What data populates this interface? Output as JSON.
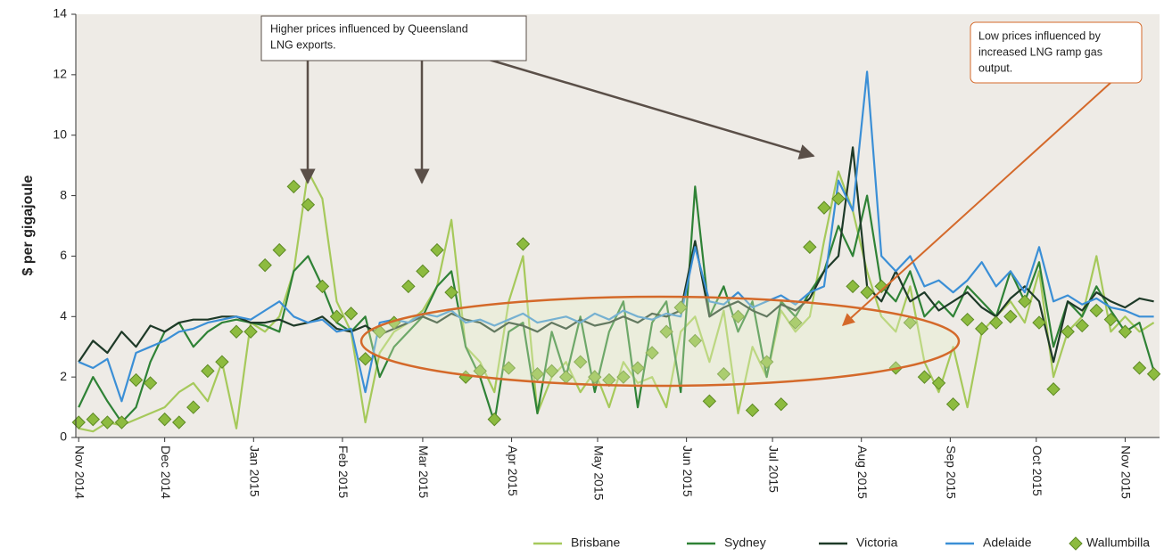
{
  "chart_data": {
    "type": "line",
    "ylabel": "$ per gigajoule",
    "xlim": [
      -1,
      377
    ],
    "ylim": [
      0,
      14
    ],
    "yticks": [
      0,
      2,
      4,
      6,
      8,
      10,
      12,
      14
    ],
    "xticks": [
      {
        "value": 0,
        "label": "Nov 2014"
      },
      {
        "value": 30,
        "label": "Dec 2014"
      },
      {
        "value": 61,
        "label": "Jan 2015"
      },
      {
        "value": 92,
        "label": "Feb 2015"
      },
      {
        "value": 120,
        "label": "Mar 2015"
      },
      {
        "value": 151,
        "label": "Apr 2015"
      },
      {
        "value": 181,
        "label": "May 2015"
      },
      {
        "value": 212,
        "label": "Jun 2015"
      },
      {
        "value": 242,
        "label": "Jul 2015"
      },
      {
        "value": 273,
        "label": "Aug 2015"
      },
      {
        "value": 304,
        "label": "Sep 2015"
      },
      {
        "value": 334,
        "label": "Oct 2015"
      },
      {
        "value": 365,
        "label": "Nov 2015"
      }
    ],
    "x": [
      0,
      5,
      10,
      15,
      20,
      25,
      30,
      35,
      40,
      45,
      50,
      55,
      60,
      65,
      70,
      75,
      80,
      85,
      90,
      95,
      100,
      105,
      110,
      115,
      120,
      125,
      130,
      135,
      140,
      145,
      150,
      155,
      160,
      165,
      170,
      175,
      180,
      185,
      190,
      195,
      200,
      205,
      210,
      215,
      220,
      225,
      230,
      235,
      240,
      245,
      250,
      255,
      260,
      265,
      270,
      275,
      280,
      285,
      290,
      295,
      300,
      305,
      310,
      315,
      320,
      325,
      330,
      335,
      340,
      345,
      350,
      355,
      360,
      365,
      370,
      375
    ],
    "annotations": [
      {
        "lines": [
          "Higher prices influenced by Queensland",
          "LNG exports."
        ]
      },
      {
        "lines": [
          "Low prices influenced by",
          "increased LNG ramp gas",
          "output."
        ]
      }
    ],
    "series": [
      {
        "name": "Brisbane",
        "color": "#a6c95b",
        "values": [
          0.3,
          0.2,
          0.5,
          0.4,
          0.6,
          0.8,
          1.0,
          1.5,
          1.8,
          1.2,
          2.5,
          0.3,
          3.8,
          3.5,
          4.0,
          5.5,
          8.8,
          7.9,
          4.5,
          3.5,
          0.5,
          2.8,
          3.5,
          3.8,
          4.2,
          5.0,
          7.2,
          3.0,
          2.5,
          1.5,
          4.5,
          6.0,
          0.8,
          2.0,
          2.5,
          1.5,
          2.2,
          1.0,
          2.5,
          1.8,
          2.0,
          1.0,
          3.5,
          4.0,
          2.5,
          4.2,
          0.8,
          3.0,
          2.0,
          4.2,
          3.5,
          4.0,
          6.5,
          8.8,
          7.5,
          5.5,
          4.0,
          3.5,
          5.0,
          2.5,
          1.5,
          3.0,
          1.0,
          3.5,
          4.0,
          4.5,
          3.8,
          5.5,
          2.0,
          3.5,
          4.0,
          6.0,
          3.5,
          4.0,
          3.5,
          3.8
        ]
      },
      {
        "name": "Sydney",
        "color": "#2f8236",
        "values": [
          1.0,
          2.0,
          1.2,
          0.5,
          1.0,
          2.5,
          3.5,
          3.8,
          3.0,
          3.5,
          3.8,
          3.9,
          3.8,
          3.7,
          3.5,
          5.5,
          6.0,
          5.0,
          3.8,
          3.5,
          4.0,
          2.0,
          3.0,
          3.5,
          4.0,
          5.0,
          5.5,
          3.0,
          2.0,
          0.5,
          3.5,
          3.8,
          0.8,
          3.5,
          2.0,
          4.0,
          1.5,
          3.5,
          4.5,
          1.0,
          3.8,
          4.5,
          1.5,
          8.3,
          4.0,
          5.0,
          3.5,
          4.5,
          2.0,
          4.5,
          4.0,
          4.8,
          5.5,
          7.0,
          6.0,
          8.0,
          5.0,
          4.5,
          5.5,
          4.0,
          4.5,
          4.0,
          5.0,
          4.5,
          4.0,
          5.5,
          4.5,
          5.8,
          3.0,
          4.5,
          4.0,
          5.0,
          4.2,
          3.5,
          3.8,
          2.2
        ]
      },
      {
        "name": "Victoria",
        "color": "#1e3a28",
        "values": [
          2.5,
          3.2,
          2.8,
          3.5,
          3.0,
          3.7,
          3.5,
          3.8,
          3.9,
          3.9,
          4.0,
          4.0,
          3.8,
          3.8,
          3.9,
          3.7,
          3.8,
          4.0,
          3.6,
          3.5,
          3.7,
          3.4,
          3.6,
          3.8,
          4.0,
          3.8,
          4.1,
          3.9,
          3.8,
          3.5,
          3.8,
          3.7,
          3.5,
          3.8,
          3.6,
          3.9,
          3.7,
          3.8,
          4.0,
          3.8,
          4.1,
          4.0,
          4.2,
          6.5,
          4.0,
          4.3,
          4.5,
          4.2,
          4.0,
          4.4,
          4.2,
          4.6,
          5.5,
          6.0,
          9.6,
          5.0,
          4.5,
          5.5,
          4.5,
          4.8,
          4.2,
          4.5,
          4.8,
          4.3,
          4.0,
          4.6,
          5.0,
          4.5,
          2.5,
          4.5,
          4.2,
          4.8,
          4.5,
          4.3,
          4.6,
          4.5
        ]
      },
      {
        "name": "Adelaide",
        "color": "#3b8fd6",
        "values": [
          2.5,
          2.3,
          2.6,
          1.2,
          2.8,
          3.0,
          3.2,
          3.5,
          3.6,
          3.8,
          3.9,
          4.0,
          3.9,
          4.2,
          4.5,
          4.0,
          3.8,
          3.9,
          3.5,
          3.6,
          1.5,
          3.8,
          3.9,
          3.8,
          4.1,
          4.0,
          4.2,
          3.8,
          3.9,
          3.7,
          3.9,
          4.1,
          3.8,
          3.9,
          4.0,
          3.8,
          4.1,
          3.9,
          4.2,
          4.0,
          3.9,
          4.1,
          4.0,
          6.3,
          4.5,
          4.4,
          4.8,
          4.3,
          4.5,
          4.7,
          4.4,
          4.8,
          5.0,
          8.5,
          7.5,
          12.1,
          6.0,
          5.5,
          6.0,
          5.0,
          5.2,
          4.8,
          5.2,
          5.8,
          5.0,
          5.5,
          4.8,
          6.3,
          4.5,
          4.7,
          4.4,
          4.6,
          4.3,
          4.2,
          4.0,
          4.0
        ]
      },
      {
        "name": "Wallumbilla",
        "color": "#8dbb3f",
        "marker": "diamond",
        "values": [
          0.5,
          0.6,
          0.5,
          0.5,
          1.9,
          1.8,
          0.6,
          0.5,
          1.0,
          2.2,
          2.5,
          3.5,
          3.5,
          5.7,
          6.2,
          8.3,
          7.7,
          5.0,
          4.0,
          4.1,
          2.6,
          3.5,
          3.8,
          5.0,
          5.5,
          6.2,
          4.8,
          2.0,
          2.2,
          0.6,
          2.3,
          6.4,
          2.1,
          2.2,
          2.0,
          2.5,
          2.0,
          1.9,
          2.0,
          2.3,
          2.8,
          3.5,
          4.3,
          3.2,
          1.2,
          2.1,
          4.0,
          0.9,
          2.5,
          1.1,
          3.8,
          6.3,
          7.6,
          7.9,
          5.0,
          4.8,
          5.0,
          2.3,
          3.8,
          2.0,
          1.8,
          1.1,
          3.9,
          3.6,
          3.8,
          4.0,
          4.5,
          3.8,
          1.6,
          3.5,
          3.7,
          4.2,
          3.9,
          3.5,
          2.3,
          2.1
        ]
      }
    ]
  }
}
